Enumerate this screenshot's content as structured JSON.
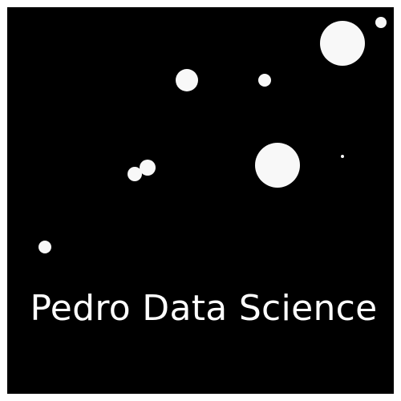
{
  "logo": {
    "text": "Pedro Data Science",
    "background_color": "#000000",
    "dot_color": "#f8f8f8",
    "icon": "scatter-dots-logo"
  }
}
